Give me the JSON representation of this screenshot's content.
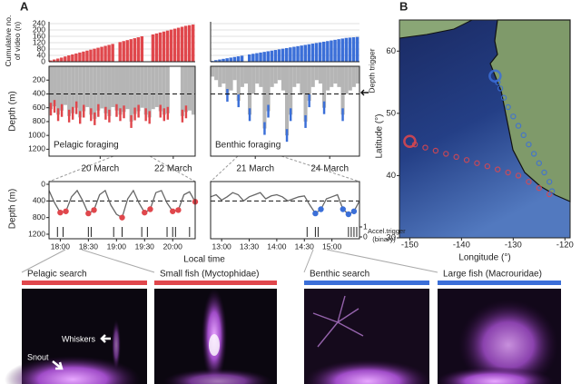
{
  "panel_labels": [
    "A",
    "B"
  ],
  "chart_data": [
    {
      "type": "bar",
      "ylabel": "Cumulative no. of video (n)",
      "ylim": [
        0,
        240
      ],
      "yticks": [
        0,
        40,
        80,
        120,
        160,
        200,
        240
      ],
      "grid": true,
      "panels": [
        {
          "color": "#e0474c",
          "values": [
            8,
            14,
            20,
            26,
            33,
            40,
            46,
            52,
            58,
            64,
            70,
            76,
            82,
            88,
            94,
            100,
            106,
            112,
            null,
            124,
            130,
            136,
            142,
            148,
            154,
            160,
            null,
            null,
            172,
            178,
            184,
            190,
            196,
            202,
            208,
            214,
            220,
            226,
            230,
            234
          ]
        },
        {
          "color": "#3b6fd8",
          "values": [
            5,
            10,
            14,
            18,
            22,
            26,
            30,
            34,
            38,
            null,
            46,
            50,
            54,
            58,
            62,
            66,
            70,
            74,
            78,
            82,
            86,
            90,
            94,
            98,
            102,
            106,
            110,
            114,
            118,
            122,
            126,
            130,
            134,
            138,
            142,
            146,
            150,
            152,
            154,
            156
          ]
        }
      ]
    },
    {
      "type": "area",
      "ylabel": "Depth (m)",
      "ylim": [
        1300,
        0
      ],
      "yticks": [
        200,
        400,
        600,
        800,
        1000,
        1200
      ],
      "depth_trigger": 400,
      "trigger_label": "Depth trigger",
      "profile_color": "#b5b5b5",
      "panels": [
        {
          "xlim": [
            0,
            40
          ],
          "xticks": [
            {
              "value": 14,
              "label": "20 March"
            },
            {
              "value": 34,
              "label": "22 March"
            }
          ],
          "profile": [
            620,
            580,
            700,
            640,
            560,
            720,
            680,
            600,
            740,
            650,
            590,
            700,
            760,
            640,
            610,
            680,
            720,
            590,
            640,
            700,
            660,
            620,
            800,
            690,
            650,
            600,
            700,
            740,
            620,
            590,
            650,
            700,
            680,
            null,
            null,
            null,
            720,
            660,
            640,
            700
          ],
          "series": {
            "name": "Pelagic foraging",
            "color": "#e0474c",
            "values": [
              620,
              580,
              700,
              640,
              null,
              720,
              680,
              600,
              740,
              650,
              null,
              700,
              760,
              640,
              null,
              680,
              720,
              null,
              640,
              700,
              660,
              null,
              800,
              690,
              650,
              null,
              700,
              740,
              null,
              null,
              650,
              700,
              680,
              null,
              null,
              null,
              720,
              660,
              null,
              null
            ]
          }
        },
        {
          "xlim": [
            0,
            40
          ],
          "xticks": [
            {
              "value": 12,
              "label": "21 March"
            },
            {
              "value": 32,
              "label": "24 March"
            }
          ],
          "profile": [
            150,
            200,
            300,
            250,
            420,
            350,
            200,
            500,
            300,
            250,
            700,
            400,
            250,
            300,
            900,
            650,
            300,
            250,
            200,
            350,
            1000,
            700,
            300,
            250,
            400,
            800,
            500,
            300,
            200,
            250,
            600,
            350,
            300,
            250,
            300,
            700,
            400,
            350,
            300,
            250
          ],
          "series": {
            "name": "Benthic foraging",
            "color": "#3b6fd8",
            "values": [
              null,
              null,
              null,
              null,
              420,
              null,
              null,
              500,
              null,
              null,
              700,
              null,
              null,
              null,
              900,
              650,
              null,
              null,
              null,
              null,
              1000,
              700,
              null,
              null,
              null,
              800,
              500,
              null,
              null,
              null,
              600,
              null,
              null,
              null,
              null,
              700,
              null,
              null,
              null,
              null
            ]
          }
        }
      ]
    },
    {
      "type": "line",
      "ylabel": "Depth (m)",
      "ylim": [
        1200,
        0
      ],
      "yticks": [
        0,
        400,
        800,
        1200
      ],
      "depth_trigger": 400,
      "xlabel": "Local time",
      "y2label": "Accel.trigger (binary)",
      "y2lim": [
        0,
        1
      ],
      "y2ticks": [
        0,
        1
      ],
      "profile_color": "#666666",
      "panels": [
        {
          "xlim": [
            17.8,
            20.4
          ],
          "xticks": [
            {
              "value": 18,
              "label": "18:00"
            },
            {
              "value": 18.5,
              "label": "18:30"
            },
            {
              "value": 19,
              "label": "19:00"
            },
            {
              "value": 19.5,
              "label": "19:30"
            },
            {
              "value": 20,
              "label": "20:00"
            }
          ],
          "x": [
            17.8,
            17.9,
            18.0,
            18.1,
            18.2,
            18.3,
            18.4,
            18.5,
            18.6,
            18.7,
            18.8,
            18.9,
            19.0,
            19.1,
            19.2,
            19.3,
            19.4,
            19.5,
            19.6,
            19.7,
            19.8,
            19.9,
            20.0,
            20.1,
            20.2,
            20.3,
            20.4
          ],
          "profile": [
            150,
            450,
            680,
            650,
            300,
            150,
            400,
            700,
            620,
            250,
            150,
            500,
            720,
            800,
            350,
            150,
            450,
            680,
            600,
            200,
            150,
            450,
            650,
            620,
            250,
            180,
            420
          ],
          "foraging": {
            "color": "#e0474c",
            "values": [
              null,
              null,
              680,
              650,
              null,
              null,
              null,
              700,
              620,
              null,
              null,
              null,
              null,
              800,
              null,
              null,
              null,
              680,
              600,
              null,
              null,
              null,
              650,
              620,
              null,
              null,
              420
            ]
          },
          "triggers": {
            "axis": "y2",
            "x": [
              17.95,
              18.05,
              18.5,
              18.55,
              18.95,
              19.1,
              19.45,
              19.55,
              19.9,
              20.0,
              20.05,
              20.3
            ],
            "values": [
              1,
              1,
              1,
              1,
              1,
              1,
              1,
              1,
              1,
              1,
              1,
              1
            ]
          }
        },
        {
          "xlim": [
            12.8,
            15.5
          ],
          "xticks": [
            {
              "value": 13,
              "label": "13:00"
            },
            {
              "value": 13.5,
              "label": "13:30"
            },
            {
              "value": 14,
              "label": "14:00"
            },
            {
              "value": 14.5,
              "label": "14:30"
            },
            {
              "value": 15,
              "label": "15:00"
            }
          ],
          "x": [
            12.8,
            12.9,
            13.0,
            13.1,
            13.2,
            13.3,
            13.4,
            13.5,
            13.6,
            13.7,
            13.8,
            13.9,
            14.0,
            14.1,
            14.2,
            14.3,
            14.4,
            14.5,
            14.6,
            14.7,
            14.8,
            14.9,
            15.0,
            15.1,
            15.2,
            15.3,
            15.4,
            15.5
          ],
          "profile": [
            300,
            250,
            380,
            300,
            200,
            250,
            400,
            300,
            250,
            200,
            350,
            280,
            250,
            300,
            400,
            350,
            300,
            280,
            500,
            700,
            600,
            350,
            300,
            250,
            600,
            720,
            650,
            400
          ],
          "foraging": {
            "color": "#3b6fd8",
            "values": [
              null,
              null,
              null,
              null,
              null,
              null,
              null,
              null,
              null,
              null,
              null,
              null,
              null,
              null,
              null,
              null,
              null,
              null,
              null,
              700,
              600,
              null,
              null,
              null,
              600,
              720,
              650,
              null
            ]
          },
          "triggers": {
            "axis": "y2",
            "x": [
              14.55,
              14.7,
              14.75,
              15.3,
              15.35,
              15.4,
              15.45
            ],
            "values": [
              1,
              1,
              1,
              1,
              1,
              1,
              1
            ]
          }
        }
      ]
    },
    {
      "type": "scatter",
      "xlabel": "Longitude (°)",
      "ylabel": "Latitude (°)",
      "xlim": [
        -152,
        -119
      ],
      "ylim": [
        30,
        65
      ],
      "xticks": [
        -150,
        -140,
        -130,
        -120
      ],
      "yticks": [
        30,
        40,
        50,
        60
      ],
      "series": [
        {
          "color": "#e0474c",
          "x": [
            -150,
            -149,
            -147,
            -145,
            -143,
            -141,
            -139,
            -137,
            -135,
            -133,
            -131,
            -129,
            -127,
            -125,
            -123
          ],
          "values": [
            45.5,
            45,
            44.5,
            44,
            43.5,
            43,
            42.5,
            42,
            41.5,
            41,
            40.5,
            40,
            39,
            38,
            37
          ]
        },
        {
          "color": "#3b6fd8",
          "x": [
            -133.5,
            -133,
            -132.5,
            -131.8,
            -131,
            -130,
            -129,
            -128,
            -127,
            -126,
            -125,
            -124,
            -123,
            -122.5
          ],
          "values": [
            56,
            55,
            54,
            52.5,
            51,
            49.5,
            48,
            46.5,
            45,
            43.5,
            42,
            40.5,
            39,
            37.5
          ]
        }
      ]
    }
  ],
  "photos": [
    {
      "label": "Pelagic search",
      "color": "#e0474c"
    },
    {
      "label": "Small fish (Myctophidae)",
      "color": "#e0474c"
    },
    {
      "label": "Benthic search",
      "color": "#3b6fd8"
    },
    {
      "label": "Large fish (Macrouridae)",
      "color": "#3b6fd8"
    }
  ],
  "photo_annotations": [
    "Whiskers",
    "Snout"
  ]
}
